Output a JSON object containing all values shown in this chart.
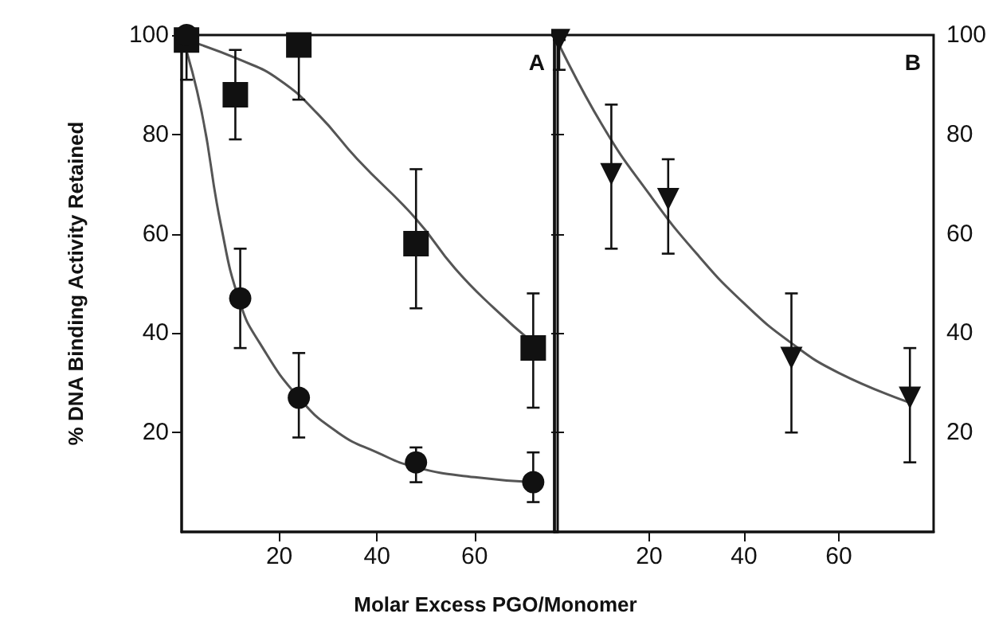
{
  "chart_data": [
    {
      "type": "scatter",
      "ylabel": "% DNA Binding Activity Retained",
      "xlabel": "Molar Excess PGO/Monomer",
      "annotations": [
        "A"
      ],
      "xlim": [
        0,
        77
      ],
      "xticks": [
        20,
        40,
        60
      ],
      "ylim": [
        0,
        100
      ],
      "yticks": [
        20,
        40,
        60,
        80,
        100
      ],
      "grid": false,
      "series": [
        {
          "marker": "square",
          "color": "#111111",
          "x": [
            1,
            11,
            24,
            48,
            72
          ],
          "values": [
            99,
            88,
            98,
            58,
            37
          ],
          "errors": [
            null,
            [
              79,
              97
            ],
            [
              87,
              100
            ],
            [
              45,
              73
            ],
            [
              25,
              48
            ]
          ]
        },
        {
          "marker": "circle",
          "color": "#111111",
          "x": [
            1,
            12,
            24,
            48,
            72
          ],
          "values": [
            100,
            47,
            27,
            14,
            10
          ],
          "errors": [
            [
              91,
              100
            ],
            [
              37,
              57
            ],
            [
              19,
              36
            ],
            [
              10,
              17
            ],
            [
              6,
              16
            ]
          ]
        },
        {
          "type": "line",
          "marker": "none",
          "color": "#555555",
          "x": [
            1,
            12,
            20,
            28,
            36,
            48,
            56,
            64,
            72
          ],
          "values": [
            99,
            95,
            91,
            84,
            75,
            63,
            53,
            45,
            38
          ]
        },
        {
          "type": "line",
          "marker": "none",
          "color": "#555555",
          "x": [
            0,
            4,
            8,
            12,
            16,
            24,
            32,
            40,
            48,
            60,
            72
          ],
          "values": [
            100,
            85,
            62,
            46,
            38,
            27,
            20,
            16,
            13,
            11,
            10
          ]
        }
      ]
    },
    {
      "type": "scatter",
      "annotations": [
        "B"
      ],
      "xlim": [
        0,
        80
      ],
      "xticks": [
        20,
        40,
        60
      ],
      "y2lim": [
        0,
        100
      ],
      "y2ticks": [
        20,
        40,
        60,
        80,
        100
      ],
      "grid": false,
      "series": [
        {
          "axis": "y2",
          "marker": "triangle",
          "color": "#111111",
          "x": [
            1,
            12,
            24,
            50,
            75
          ],
          "values": [
            99,
            72,
            67,
            35,
            27
          ],
          "errors": [
            [
              93,
              99
            ],
            [
              57,
              86
            ],
            [
              56,
              75
            ],
            [
              20,
              48
            ],
            [
              14,
              37
            ]
          ]
        },
        {
          "type": "line",
          "axis": "y2",
          "marker": "none",
          "color": "#555555",
          "x": [
            0,
            10,
            20,
            30,
            40,
            50,
            60,
            75
          ],
          "values": [
            100,
            82,
            68,
            56,
            46,
            38,
            32,
            26
          ]
        }
      ]
    }
  ]
}
